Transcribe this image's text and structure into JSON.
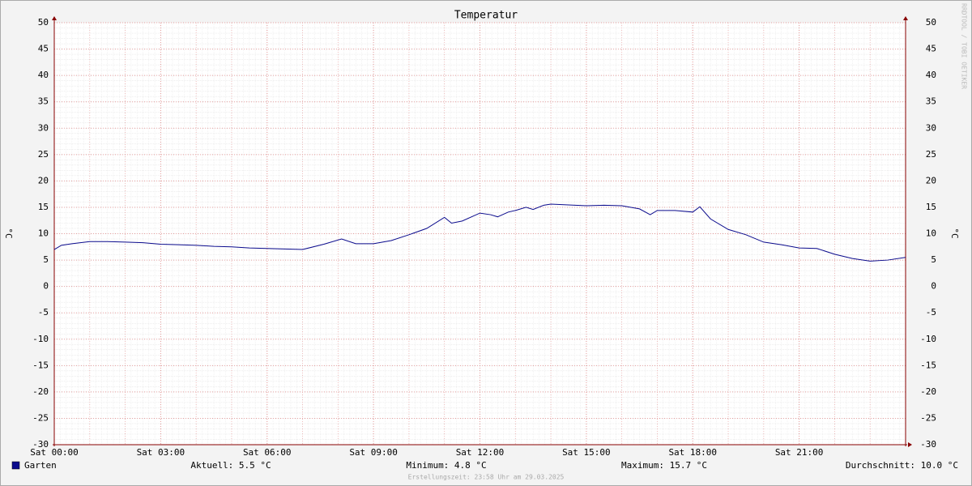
{
  "chart_data": {
    "type": "line",
    "title": "Temperatur",
    "y_label": "°C",
    "watermark": "RRDTOOL / TOBI OETIKER",
    "x": [
      0,
      0.2,
      0.5,
      1,
      1.5,
      2,
      2.5,
      3,
      3.5,
      4,
      4.5,
      5,
      5.5,
      6,
      6.5,
      7,
      7.6,
      8.1,
      8.5,
      9,
      9.5,
      10,
      10.5,
      11,
      11.2,
      11.5,
      12,
      12.3,
      12.5,
      12.8,
      13,
      13.3,
      13.5,
      13.8,
      14,
      15,
      15.5,
      16,
      16.5,
      16.8,
      17,
      17.5,
      18,
      18.2,
      18.5,
      19,
      19.5,
      20,
      20.5,
      21,
      21.5,
      22,
      22.5,
      23,
      23.5,
      24
    ],
    "series": [
      {
        "name": "Garten",
        "color": "#0a0a8c",
        "values": [
          7.0,
          7.8,
          8.1,
          8.5,
          8.5,
          8.4,
          8.3,
          8.0,
          7.9,
          7.8,
          7.6,
          7.5,
          7.3,
          7.2,
          7.1,
          7.0,
          8.0,
          9.0,
          8.1,
          8.1,
          8.7,
          9.8,
          11.0,
          13.1,
          12.0,
          12.4,
          13.9,
          13.6,
          13.2,
          14.1,
          14.4,
          15.0,
          14.6,
          15.4,
          15.6,
          15.3,
          15.4,
          15.3,
          14.7,
          13.6,
          14.4,
          14.4,
          14.1,
          15.1,
          12.8,
          10.8,
          9.8,
          8.4,
          7.9,
          7.3,
          7.2,
          6.1,
          5.3,
          4.8,
          5.0,
          5.5
        ]
      }
    ],
    "xlim": [
      0,
      24
    ],
    "xticks": [
      {
        "value": 0,
        "label": "Sat 00:00"
      },
      {
        "value": 3,
        "label": "Sat 03:00"
      },
      {
        "value": 6,
        "label": "Sat 06:00"
      },
      {
        "value": 9,
        "label": "Sat 09:00"
      },
      {
        "value": 12,
        "label": "Sat 12:00"
      },
      {
        "value": 15,
        "label": "Sat 15:00"
      },
      {
        "value": 18,
        "label": "Sat 18:00"
      },
      {
        "value": 21,
        "label": "Sat 21:00"
      }
    ],
    "ylim": [
      -30,
      50
    ],
    "yticks": [
      -30,
      -25,
      -20,
      -15,
      -10,
      -5,
      0,
      5,
      10,
      15,
      20,
      25,
      30,
      35,
      40,
      45,
      50
    ],
    "grid": true,
    "legend_stats": [
      "Aktuell: 5.5 °C",
      "Minimum: 4.8 °C",
      "Maximum: 15.7 °C",
      "Durchschnitt: 10.0 °C"
    ],
    "footer": "Erstellungszeit: 23:58 Uhr am 29.03.2025"
  }
}
